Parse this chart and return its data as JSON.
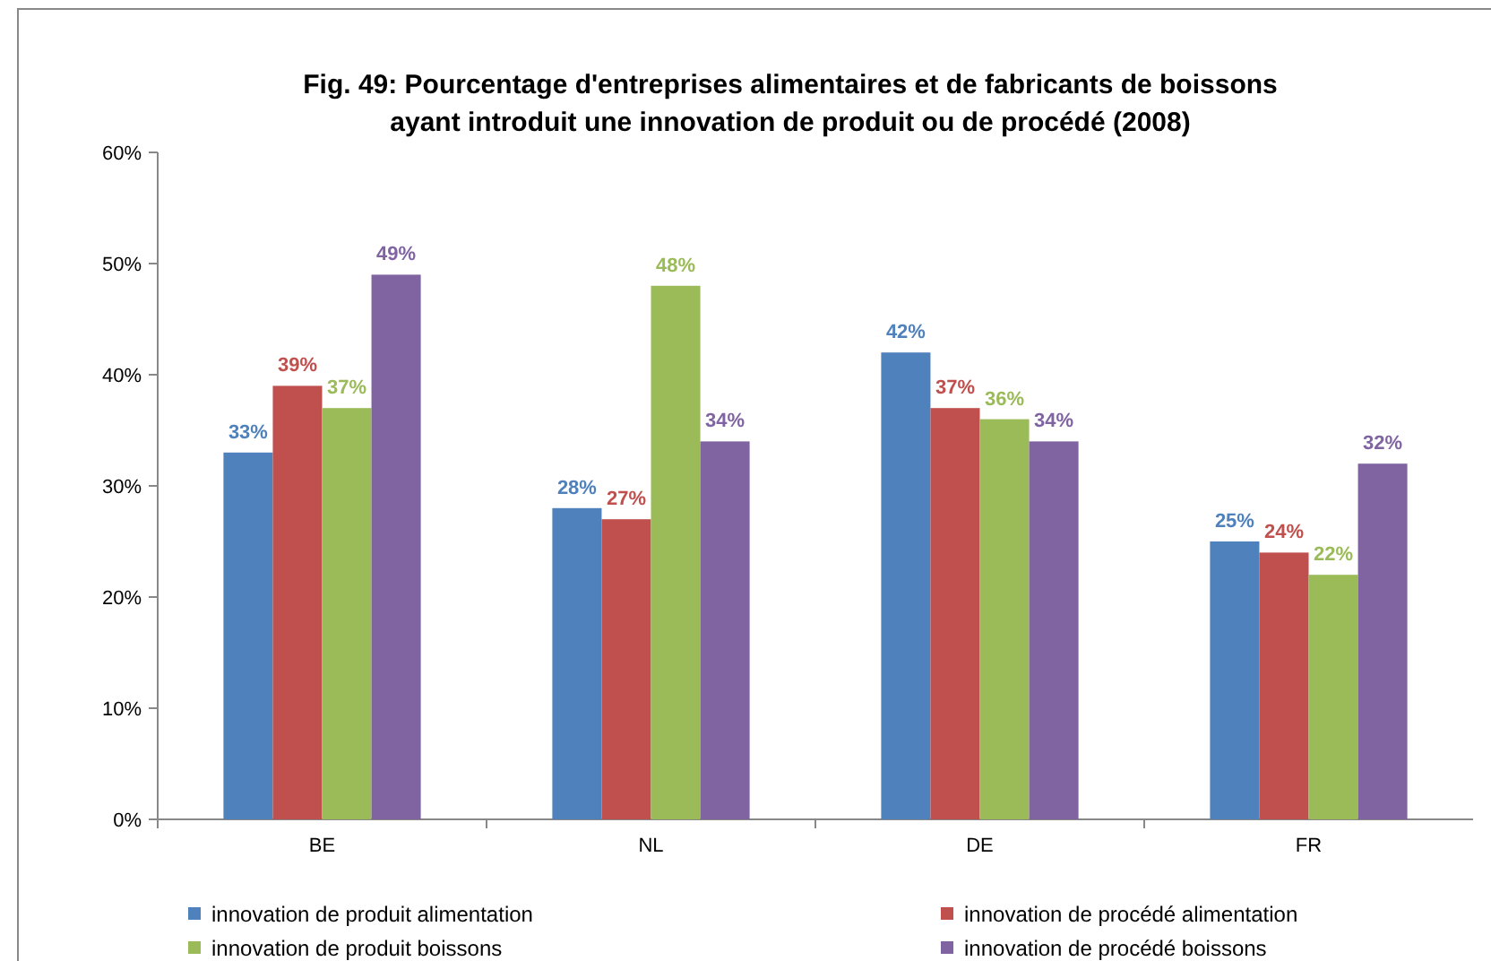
{
  "chart_data": {
    "type": "bar",
    "title": "Fig. 49: Pourcentage d'entreprises alimentaires et de fabricants de boissons\nayant introduit une innovation de produit ou de procédé (2008)",
    "categories": [
      "BE",
      "NL",
      "DE",
      "FR"
    ],
    "series": [
      {
        "name": "innovation de produit alimentation",
        "color": "#4f81bd",
        "values": [
          33,
          28,
          42,
          25
        ],
        "value_labels": [
          "33%",
          "28%",
          "42%",
          "25%"
        ]
      },
      {
        "name": "innovation de procédé alimentation",
        "color": "#c0504d",
        "values": [
          39,
          27,
          37,
          24
        ],
        "value_labels": [
          "39%",
          "27%",
          "37%",
          "24%"
        ]
      },
      {
        "name": "innovation de produit boissons",
        "color": "#9bbb59",
        "values": [
          37,
          48,
          36,
          22
        ],
        "value_labels": [
          "37%",
          "48%",
          "36%",
          "22%"
        ]
      },
      {
        "name": "innovation de procédé boissons",
        "color": "#8064a2",
        "values": [
          49,
          34,
          34,
          32
        ],
        "value_labels": [
          "49%",
          "34%",
          "34%",
          "32%"
        ]
      }
    ],
    "ylim": [
      0,
      60
    ],
    "yticks": [
      {
        "value": 0,
        "label": "0%"
      },
      {
        "value": 10,
        "label": "10%"
      },
      {
        "value": 20,
        "label": "20%"
      },
      {
        "value": 30,
        "label": "30%"
      },
      {
        "value": 40,
        "label": "40%"
      },
      {
        "value": 50,
        "label": "50%"
      },
      {
        "value": 60,
        "label": "60%"
      }
    ],
    "legend": "bottom"
  }
}
